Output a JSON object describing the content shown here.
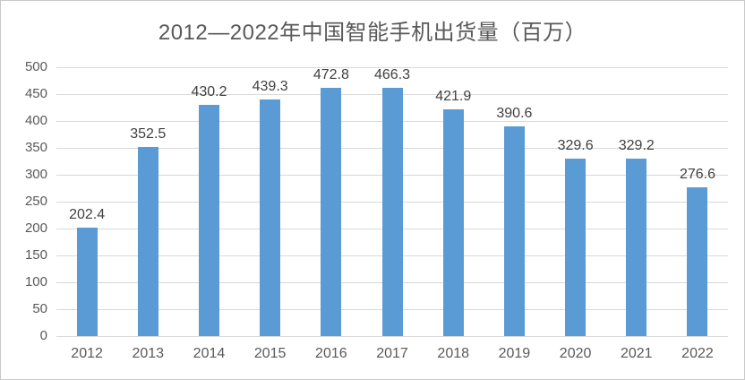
{
  "title": "2012—2022年中国智能手机出货量（百万）",
  "colors": {
    "bar": "#5B9BD5",
    "gridline": "#D9D9D9",
    "axis_text": "#595959",
    "data_label_text": "#404040",
    "title_text": "#595959",
    "frame_border": "#C9C9C9",
    "background": "#FFFFFF"
  },
  "chart_data": {
    "type": "bar",
    "title": "2012—2022年中国智能手机出货量（百万）",
    "categories": [
      "2012",
      "2013",
      "2014",
      "2015",
      "2016",
      "2017",
      "2018",
      "2019",
      "2020",
      "2021",
      "2022"
    ],
    "values": [
      202.4,
      352.5,
      430.2,
      439.3,
      472.8,
      466.3,
      421.9,
      390.6,
      329.6,
      329.2,
      276.6
    ],
    "data_labels": [
      "202.4",
      "352.5",
      "430.2",
      "439.3",
      "472.8",
      "466.3",
      "421.9",
      "390.6",
      "329.6",
      "329.2",
      "276.6"
    ],
    "xlabel": "",
    "ylabel": "",
    "ylim": [
      0,
      500
    ],
    "ytick_step": 50,
    "yticks": [
      0,
      50,
      100,
      150,
      200,
      250,
      300,
      350,
      400,
      450,
      500
    ],
    "grid": true,
    "legend": false
  }
}
